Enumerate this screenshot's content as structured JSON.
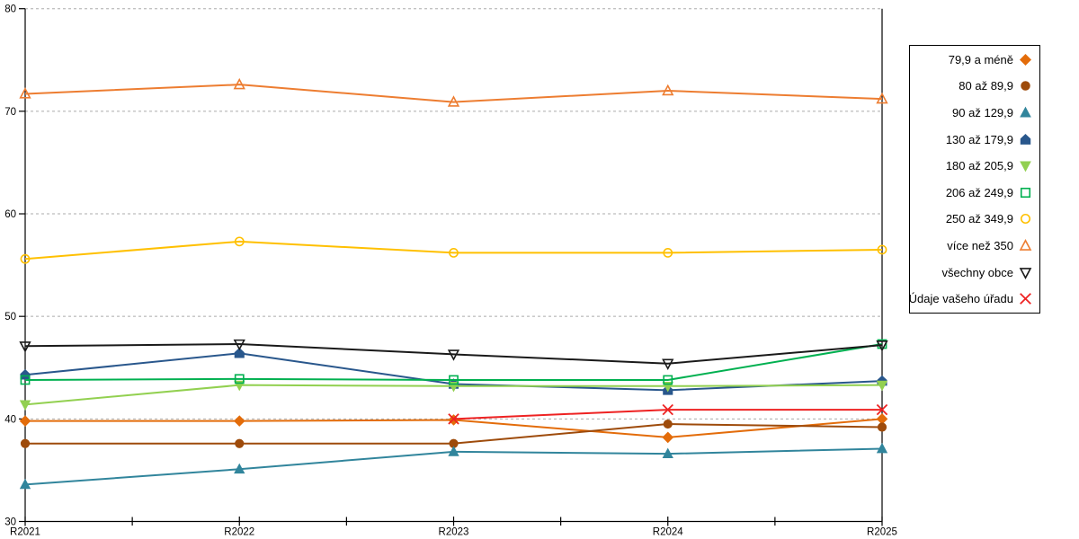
{
  "chart_data": {
    "type": "line",
    "title": "",
    "xlabel": "",
    "ylabel": "",
    "categories": [
      "R2021",
      "R2022",
      "R2023",
      "R2024",
      "R2025"
    ],
    "series": [
      {
        "name": "79,9 a méně",
        "color": "#E36C0A",
        "marker": "diamond",
        "filled": true,
        "values": [
          39.8,
          39.8,
          39.9,
          38.2,
          40.0
        ]
      },
      {
        "name": "80 až 89,9",
        "color": "#9E4B0B",
        "marker": "circle",
        "filled": true,
        "values": [
          37.6,
          37.6,
          37.6,
          39.5,
          39.2
        ]
      },
      {
        "name": "90 až 129,9",
        "color": "#31859C",
        "marker": "triangle-up",
        "filled": true,
        "values": [
          33.6,
          35.1,
          36.8,
          36.6,
          37.1
        ]
      },
      {
        "name": "130 až 179,9",
        "color": "#29578C",
        "marker": "pentagon",
        "filled": true,
        "values": [
          44.3,
          46.4,
          43.4,
          42.8,
          43.7
        ]
      },
      {
        "name": "180 až 205,9",
        "color": "#92D050",
        "marker": "triangle-down",
        "filled": true,
        "values": [
          41.4,
          43.3,
          43.2,
          43.2,
          43.3
        ]
      },
      {
        "name": "206 až 249,9",
        "color": "#00B050",
        "marker": "square",
        "filled": false,
        "values": [
          43.8,
          43.9,
          43.8,
          43.8,
          47.3
        ]
      },
      {
        "name": "250 až 349,9",
        "color": "#FFC000",
        "marker": "circle",
        "filled": false,
        "values": [
          55.6,
          57.3,
          56.2,
          56.2,
          56.5
        ]
      },
      {
        "name": "více než 350",
        "color": "#ED7D31",
        "marker": "triangle-up",
        "filled": false,
        "values": [
          71.7,
          72.6,
          70.9,
          72.0,
          71.2
        ]
      },
      {
        "name": "všechny obce",
        "color": "#1A1A1A",
        "marker": "triangle-down",
        "filled": false,
        "values": [
          47.1,
          47.3,
          46.3,
          45.4,
          47.2
        ]
      },
      {
        "name": "Údaje vašeho úřadu",
        "color": "#EE2222",
        "marker": "x",
        "filled": false,
        "values": [
          null,
          null,
          40.0,
          40.9,
          40.9
        ]
      }
    ],
    "ylim": [
      30,
      80
    ],
    "yticks": [
      30,
      40,
      50,
      60,
      70,
      80
    ],
    "grid": "dashed-horizontal",
    "legend_position": "right"
  },
  "colors": {
    "background": "#FFFFFF",
    "axis": "#000000",
    "gridline": "#ABABAB",
    "tick_label": "#000000",
    "legend_border": "#000000"
  }
}
